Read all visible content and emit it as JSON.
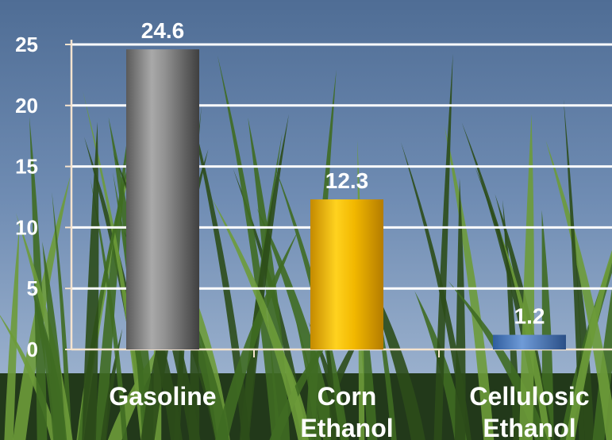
{
  "chart_data": {
    "type": "bar",
    "title": "",
    "xlabel": "",
    "ylabel": "",
    "categories": [
      [
        "Gasoline"
      ],
      [
        "Corn",
        "Ethanol"
      ],
      [
        "Cellulosic",
        "Ethanol"
      ]
    ],
    "values": [
      24.6,
      12.3,
      1.2
    ],
    "value_labels": [
      "24.6",
      "12.3",
      "1.2"
    ],
    "ylim": [
      0,
      25
    ],
    "yticks": [
      0,
      5,
      10,
      15,
      20,
      25
    ],
    "ytick_labels": [
      "0",
      "5",
      "10",
      "15",
      "20",
      "25"
    ],
    "grid": true,
    "legend": "none",
    "bar_styles": [
      "gray",
      "gold",
      "blue"
    ]
  },
  "colors": {
    "sky_top": "#5d7aa0",
    "sky_bottom": "#9fb4cf",
    "grass_dark": "#1f3a12",
    "grass_light": "#6fa23a",
    "gridline": "#ffffff",
    "label_text": "#ffffff",
    "axis_line": "#f6e4cf"
  }
}
